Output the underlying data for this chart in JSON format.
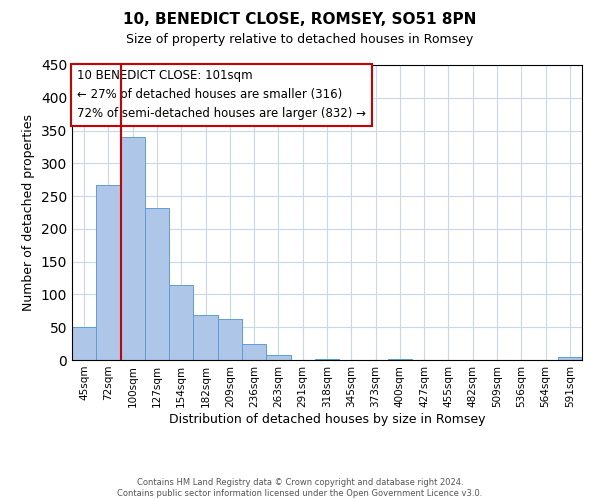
{
  "title": "10, BENEDICT CLOSE, ROMSEY, SO51 8PN",
  "subtitle": "Size of property relative to detached houses in Romsey",
  "xlabel": "Distribution of detached houses by size in Romsey",
  "ylabel": "Number of detached properties",
  "bin_labels": [
    "45sqm",
    "72sqm",
    "100sqm",
    "127sqm",
    "154sqm",
    "182sqm",
    "209sqm",
    "236sqm",
    "263sqm",
    "291sqm",
    "318sqm",
    "345sqm",
    "373sqm",
    "400sqm",
    "427sqm",
    "455sqm",
    "482sqm",
    "509sqm",
    "536sqm",
    "564sqm",
    "591sqm"
  ],
  "bar_values": [
    50,
    267,
    340,
    232,
    115,
    68,
    62,
    25,
    7,
    0,
    2,
    0,
    0,
    2,
    0,
    0,
    0,
    0,
    0,
    0,
    5
  ],
  "bar_color": "#aec6e8",
  "bar_edge_color": "#5a9fd4",
  "ylim": [
    0,
    450
  ],
  "yticks": [
    0,
    50,
    100,
    150,
    200,
    250,
    300,
    350,
    400,
    450
  ],
  "property_line_color": "#cc0000",
  "annotation_box_text_line1": "10 BENEDICT CLOSE: 101sqm",
  "annotation_box_text_line2": "← 27% of detached houses are smaller (316)",
  "annotation_box_text_line3": "72% of semi-detached houses are larger (832) →",
  "annotation_box_color": "#cc0000",
  "footer_line1": "Contains HM Land Registry data © Crown copyright and database right 2024.",
  "footer_line2": "Contains public sector information licensed under the Open Government Licence v3.0.",
  "background_color": "#ffffff",
  "grid_color": "#c8d8ea"
}
